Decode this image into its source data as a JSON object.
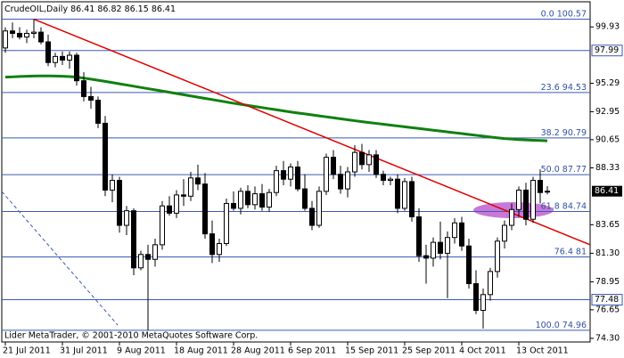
{
  "chart_data": {
    "type": "candlestick",
    "title": "CrudeOIL,Daily",
    "footer": "Lider MetaTrader, © 2001-2010 MetaQuotes Software Corp.",
    "categories": [
      "21 Jul 2011",
      null,
      null,
      null,
      null,
      null,
      null,
      null,
      "31 Jul 2011",
      null,
      null,
      null,
      null,
      null,
      null,
      null,
      "9 Aug 2011",
      null,
      null,
      null,
      null,
      null,
      null,
      null,
      "18 Aug 2011",
      null,
      null,
      null,
      null,
      null,
      null,
      null,
      "28 Aug 2011",
      null,
      null,
      null,
      null,
      null,
      null,
      null,
      "6 Sep 2011",
      null,
      null,
      null,
      null,
      null,
      null,
      null,
      "15 Sep 2011",
      null,
      null,
      null,
      null,
      null,
      null,
      null,
      "25 Sep 2011",
      null,
      null,
      null,
      null,
      null,
      null,
      null,
      "4 Oct 2011",
      null,
      null,
      null,
      null,
      null,
      null,
      null,
      "13 Oct 2011",
      null,
      null,
      null,
      null
    ],
    "ohlc": {
      "open": [
        98.2,
        99.6,
        99.4,
        99.1,
        99.4,
        99.5,
        98.7,
        97.0,
        97.5,
        97.2,
        97.6,
        95.5,
        94.2,
        93.9,
        92.0,
        86.5,
        87.3,
        83.6,
        84.8,
        80.1,
        81.2,
        80.8,
        82.0,
        85.2,
        84.6,
        86.1,
        86.0,
        87.5,
        87.0,
        82.9,
        81.2,
        82.1,
        85.4,
        85.0,
        86.4,
        85.3,
        86.2,
        85.1,
        86.3,
        88.1,
        87.4,
        88.4,
        86.6,
        85.0,
        83.6,
        86.4,
        89.2,
        87.8,
        86.6,
        88.0,
        89.6,
        88.6,
        89.4,
        87.8,
        87.3,
        87.4,
        85.0,
        87.2,
        84.3,
        81.1,
        80.9,
        82.2,
        81.3,
        82.6,
        83.8,
        81.9,
        78.8,
        76.6,
        77.9,
        79.8,
        82.3,
        83.6,
        84.9,
        86.5,
        84.1,
        87.3,
        86.41
      ],
      "high": [
        99.9,
        100.3,
        99.9,
        99.7,
        100.57,
        99.9,
        99.3,
        97.8,
        97.9,
        97.9,
        97.8,
        96.2,
        95.0,
        94.2,
        92.6,
        87.8,
        87.6,
        85.2,
        85.0,
        81.5,
        82.0,
        82.5,
        85.6,
        86.0,
        86.5,
        87.4,
        88.0,
        88.6,
        87.9,
        84.0,
        82.5,
        85.8,
        86.4,
        86.7,
        86.9,
        86.8,
        87.0,
        86.6,
        88.5,
        88.9,
        88.7,
        88.9,
        87.8,
        85.6,
        86.8,
        89.5,
        89.8,
        88.5,
        88.4,
        90.2,
        90.3,
        89.8,
        89.8,
        88.1,
        87.6,
        87.8,
        87.5,
        87.6,
        85.0,
        82.0,
        82.6,
        83.9,
        83.1,
        84.2,
        84.3,
        82.5,
        79.9,
        78.4,
        80.1,
        82.6,
        84.0,
        85.4,
        86.8,
        87.1,
        87.6,
        88.2,
        86.82
      ],
      "low": [
        97.8,
        99.0,
        98.9,
        98.6,
        99.0,
        98.5,
        96.7,
        96.6,
        96.8,
        96.5,
        95.1,
        93.8,
        93.2,
        91.6,
        86.0,
        85.5,
        83.0,
        82.8,
        79.5,
        79.9,
        74.96,
        80.2,
        81.6,
        84.4,
        84.2,
        85.2,
        85.6,
        86.5,
        82.5,
        80.5,
        80.6,
        81.9,
        84.8,
        84.5,
        85.0,
        84.9,
        84.8,
        84.7,
        86.0,
        86.9,
        86.8,
        86.4,
        84.8,
        83.2,
        83.4,
        86.1,
        87.4,
        86.2,
        85.9,
        87.6,
        88.2,
        88.0,
        87.5,
        86.9,
        86.9,
        84.6,
        84.8,
        83.9,
        80.6,
        78.8,
        80.2,
        80.8,
        77.6,
        82.1,
        81.5,
        78.4,
        76.3,
        75.1,
        77.4,
        79.3,
        81.7,
        83.2,
        84.3,
        83.6,
        83.8,
        85.4,
        86.15
      ],
      "close": [
        99.6,
        99.4,
        99.1,
        99.4,
        99.5,
        98.7,
        97.0,
        97.5,
        97.2,
        97.6,
        95.5,
        94.2,
        93.9,
        92.0,
        86.5,
        87.3,
        83.6,
        84.8,
        80.1,
        81.2,
        80.8,
        82.0,
        85.2,
        84.6,
        86.1,
        86.0,
        87.5,
        87.0,
        82.9,
        81.2,
        82.1,
        85.4,
        85.0,
        86.4,
        85.3,
        86.2,
        85.1,
        86.3,
        88.1,
        87.4,
        88.4,
        86.6,
        85.0,
        83.6,
        86.4,
        89.2,
        87.8,
        86.6,
        88.0,
        89.6,
        88.6,
        89.4,
        87.8,
        87.3,
        87.4,
        85.0,
        87.2,
        84.3,
        81.1,
        80.9,
        82.2,
        81.3,
        82.6,
        83.8,
        81.9,
        78.8,
        76.6,
        77.9,
        79.8,
        82.3,
        83.6,
        84.9,
        86.5,
        84.1,
        87.3,
        86.3,
        86.41
      ]
    },
    "moving_average": {
      "color": "#108010",
      "values": [
        95.8,
        95.82,
        95.85,
        95.87,
        95.89,
        95.9,
        95.9,
        95.89,
        95.87,
        95.84,
        95.8,
        95.72,
        95.63,
        95.54,
        95.45,
        95.35,
        95.25,
        95.15,
        95.05,
        94.95,
        94.85,
        94.75,
        94.65,
        94.55,
        94.45,
        94.35,
        94.25,
        94.15,
        94.05,
        93.95,
        93.85,
        93.75,
        93.65,
        93.56,
        93.47,
        93.38,
        93.29,
        93.2,
        93.11,
        93.02,
        92.93,
        92.85,
        92.77,
        92.69,
        92.61,
        92.53,
        92.45,
        92.37,
        92.29,
        92.21,
        92.13,
        92.06,
        91.99,
        91.92,
        91.85,
        91.78,
        91.71,
        91.64,
        91.57,
        91.5,
        91.43,
        91.36,
        91.29,
        91.22,
        91.15,
        91.08,
        91.01,
        90.94,
        90.87,
        90.8,
        90.74,
        90.7,
        90.66,
        90.63,
        90.6,
        90.58,
        90.56
      ]
    },
    "trend_line": {
      "color": "#e00000",
      "values": [
        100.57,
        82.0
      ]
    },
    "fib_levels": [
      {
        "ratio": "0.0",
        "price": 100.57
      },
      {
        "ratio": "23.6",
        "price": 94.53
      },
      {
        "ratio": "38.2",
        "price": 90.79
      },
      {
        "ratio": "50.0",
        "price": 87.77
      },
      {
        "ratio": "61.8",
        "price": 84.74
      },
      {
        "ratio": "76.4",
        "price": 81.0
      },
      {
        "ratio": "100.0",
        "price": 74.96
      }
    ],
    "fib_color": "#3c5ab4",
    "price_lines": [
      97.99,
      77.48
    ],
    "ylim": [
      74.0,
      102.0
    ],
    "yticks": [
      99.93,
      95.29,
      92.95,
      90.65,
      88.33,
      83.65,
      {
        "value": 81.3,
        "label": "81.30"
      },
      78.95,
      76.65,
      {
        "value": 74.3,
        "label": "74.30"
      }
    ]
  }
}
